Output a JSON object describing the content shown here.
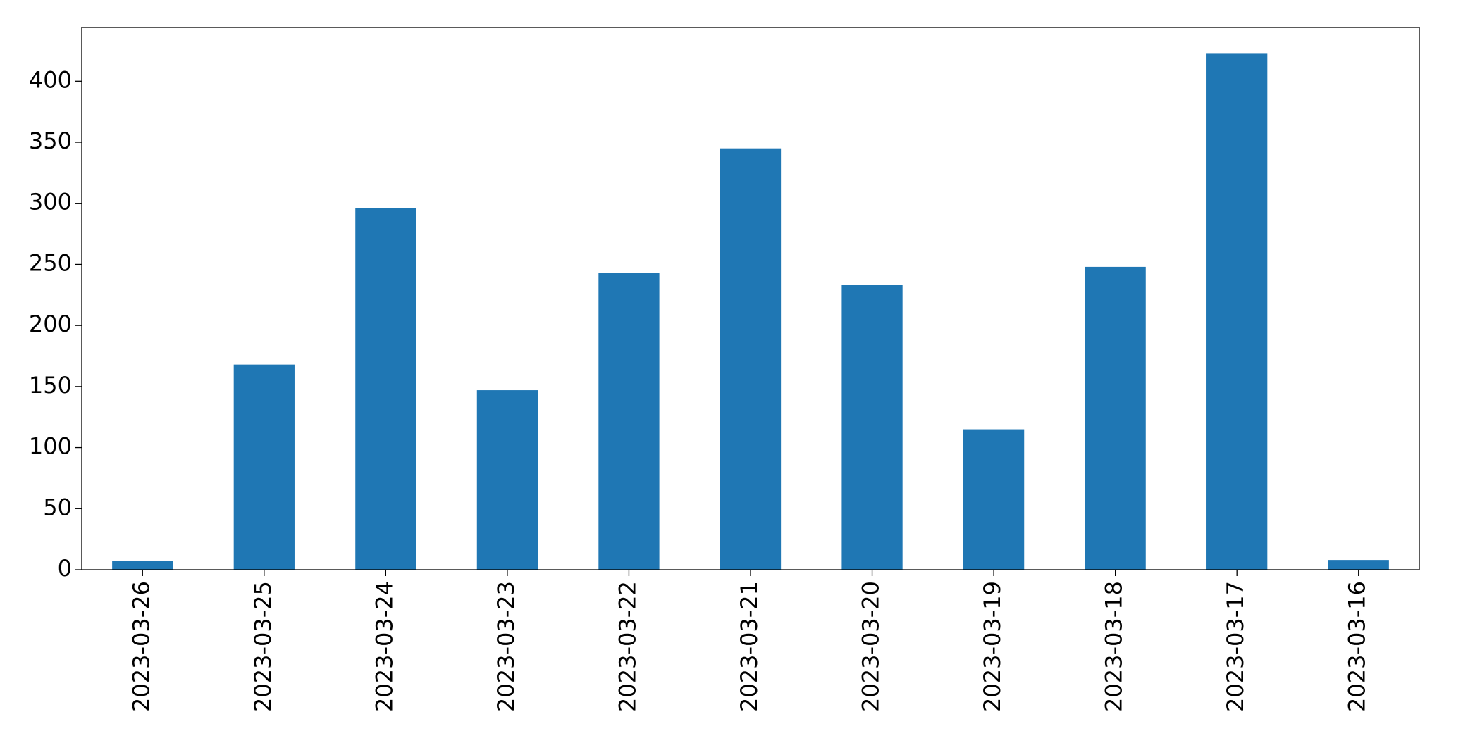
{
  "chart_data": {
    "type": "bar",
    "categories": [
      "2023-03-26",
      "2023-03-25",
      "2023-03-24",
      "2023-03-23",
      "2023-03-22",
      "2023-03-21",
      "2023-03-20",
      "2023-03-19",
      "2023-03-18",
      "2023-03-17",
      "2023-03-16"
    ],
    "values": [
      7,
      168,
      296,
      147,
      243,
      345,
      233,
      115,
      248,
      423,
      8
    ],
    "color": "#1f77b4",
    "ylim": [
      0,
      444
    ],
    "yticks": [
      0,
      50,
      100,
      150,
      200,
      250,
      300,
      350,
      400
    ],
    "grid": false
  }
}
